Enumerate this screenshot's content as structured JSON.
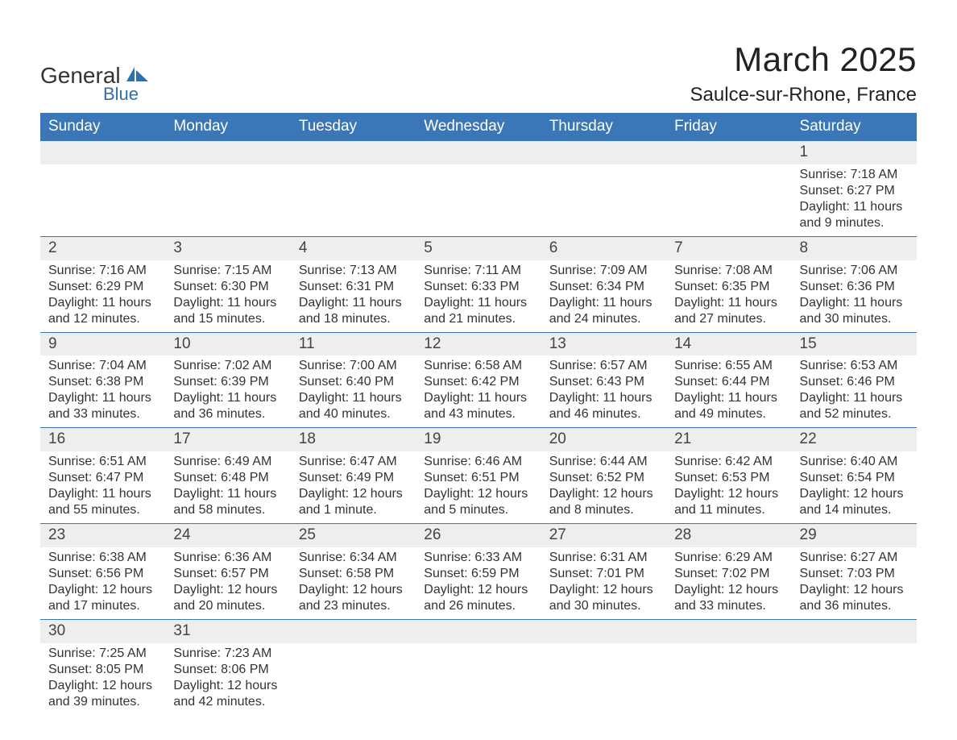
{
  "brand": {
    "name": "General",
    "sub": "Blue",
    "logo_color": "#2f6fab",
    "text_color": "#333333"
  },
  "title": {
    "month": "March 2025",
    "location": "Saulce-sur-Rhone, France"
  },
  "colors": {
    "header_bg": "#3b76b6",
    "header_text": "#ffffff",
    "daynum_bg": "#eeeeee",
    "border": "#3b76b6",
    "body_text": "#333333",
    "background": "#ffffff"
  },
  "typography": {
    "title_fontsize": 42,
    "location_fontsize": 24,
    "header_fontsize": 19,
    "daynum_fontsize": 19,
    "cell_fontsize": 16,
    "font_family": "Arial"
  },
  "weekdays": [
    "Sunday",
    "Monday",
    "Tuesday",
    "Wednesday",
    "Thursday",
    "Friday",
    "Saturday"
  ],
  "labels": {
    "sunrise": "Sunrise:",
    "sunset": "Sunset:",
    "daylight": "Daylight:"
  },
  "weeks": [
    [
      null,
      null,
      null,
      null,
      null,
      null,
      {
        "n": "1",
        "sr": "7:18 AM",
        "ss": "6:27 PM",
        "dl": "11 hours and 9 minutes."
      }
    ],
    [
      {
        "n": "2",
        "sr": "7:16 AM",
        "ss": "6:29 PM",
        "dl": "11 hours and 12 minutes."
      },
      {
        "n": "3",
        "sr": "7:15 AM",
        "ss": "6:30 PM",
        "dl": "11 hours and 15 minutes."
      },
      {
        "n": "4",
        "sr": "7:13 AM",
        "ss": "6:31 PM",
        "dl": "11 hours and 18 minutes."
      },
      {
        "n": "5",
        "sr": "7:11 AM",
        "ss": "6:33 PM",
        "dl": "11 hours and 21 minutes."
      },
      {
        "n": "6",
        "sr": "7:09 AM",
        "ss": "6:34 PM",
        "dl": "11 hours and 24 minutes."
      },
      {
        "n": "7",
        "sr": "7:08 AM",
        "ss": "6:35 PM",
        "dl": "11 hours and 27 minutes."
      },
      {
        "n": "8",
        "sr": "7:06 AM",
        "ss": "6:36 PM",
        "dl": "11 hours and 30 minutes."
      }
    ],
    [
      {
        "n": "9",
        "sr": "7:04 AM",
        "ss": "6:38 PM",
        "dl": "11 hours and 33 minutes."
      },
      {
        "n": "10",
        "sr": "7:02 AM",
        "ss": "6:39 PM",
        "dl": "11 hours and 36 minutes."
      },
      {
        "n": "11",
        "sr": "7:00 AM",
        "ss": "6:40 PM",
        "dl": "11 hours and 40 minutes."
      },
      {
        "n": "12",
        "sr": "6:58 AM",
        "ss": "6:42 PM",
        "dl": "11 hours and 43 minutes."
      },
      {
        "n": "13",
        "sr": "6:57 AM",
        "ss": "6:43 PM",
        "dl": "11 hours and 46 minutes."
      },
      {
        "n": "14",
        "sr": "6:55 AM",
        "ss": "6:44 PM",
        "dl": "11 hours and 49 minutes."
      },
      {
        "n": "15",
        "sr": "6:53 AM",
        "ss": "6:46 PM",
        "dl": "11 hours and 52 minutes."
      }
    ],
    [
      {
        "n": "16",
        "sr": "6:51 AM",
        "ss": "6:47 PM",
        "dl": "11 hours and 55 minutes."
      },
      {
        "n": "17",
        "sr": "6:49 AM",
        "ss": "6:48 PM",
        "dl": "11 hours and 58 minutes."
      },
      {
        "n": "18",
        "sr": "6:47 AM",
        "ss": "6:49 PM",
        "dl": "12 hours and 1 minute."
      },
      {
        "n": "19",
        "sr": "6:46 AM",
        "ss": "6:51 PM",
        "dl": "12 hours and 5 minutes."
      },
      {
        "n": "20",
        "sr": "6:44 AM",
        "ss": "6:52 PM",
        "dl": "12 hours and 8 minutes."
      },
      {
        "n": "21",
        "sr": "6:42 AM",
        "ss": "6:53 PM",
        "dl": "12 hours and 11 minutes."
      },
      {
        "n": "22",
        "sr": "6:40 AM",
        "ss": "6:54 PM",
        "dl": "12 hours and 14 minutes."
      }
    ],
    [
      {
        "n": "23",
        "sr": "6:38 AM",
        "ss": "6:56 PM",
        "dl": "12 hours and 17 minutes."
      },
      {
        "n": "24",
        "sr": "6:36 AM",
        "ss": "6:57 PM",
        "dl": "12 hours and 20 minutes."
      },
      {
        "n": "25",
        "sr": "6:34 AM",
        "ss": "6:58 PM",
        "dl": "12 hours and 23 minutes."
      },
      {
        "n": "26",
        "sr": "6:33 AM",
        "ss": "6:59 PM",
        "dl": "12 hours and 26 minutes."
      },
      {
        "n": "27",
        "sr": "6:31 AM",
        "ss": "7:01 PM",
        "dl": "12 hours and 30 minutes."
      },
      {
        "n": "28",
        "sr": "6:29 AM",
        "ss": "7:02 PM",
        "dl": "12 hours and 33 minutes."
      },
      {
        "n": "29",
        "sr": "6:27 AM",
        "ss": "7:03 PM",
        "dl": "12 hours and 36 minutes."
      }
    ],
    [
      {
        "n": "30",
        "sr": "7:25 AM",
        "ss": "8:05 PM",
        "dl": "12 hours and 39 minutes."
      },
      {
        "n": "31",
        "sr": "7:23 AM",
        "ss": "8:06 PM",
        "dl": "12 hours and 42 minutes."
      },
      null,
      null,
      null,
      null,
      null
    ]
  ]
}
